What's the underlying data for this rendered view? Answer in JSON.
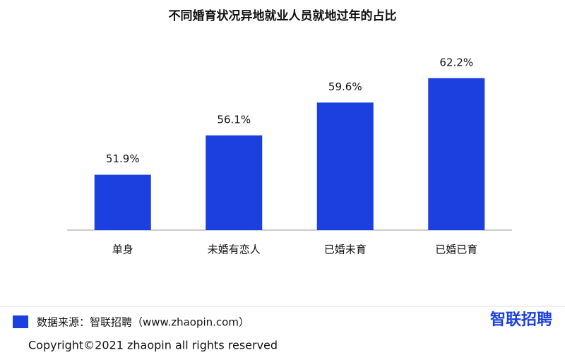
{
  "chart_data": {
    "type": "bar",
    "title": "不同婚育状况异地就业人员就地过年的占比",
    "categories": [
      "单身",
      "未婚有恋人",
      "已婚未育",
      "已婚已育"
    ],
    "values": [
      51.9,
      56.1,
      59.6,
      62.2
    ],
    "value_labels": [
      "51.9%",
      "56.1%",
      "59.6%",
      "62.2%"
    ],
    "color": "#1c3fe0",
    "ylim": [
      46,
      67
    ]
  },
  "source": "数据来源：智联招聘（www.zhaopin.com）",
  "logo": "智联招聘",
  "copyright": "Copyright©2021 zhaopin all rights reserved"
}
